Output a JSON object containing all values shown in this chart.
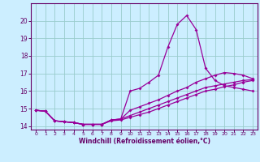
{
  "xlabel": "Windchill (Refroidissement éolien,°C)",
  "bg_color": "#cceeff",
  "line_color": "#990099",
  "grid_color": "#99cccc",
  "text_color": "#660066",
  "axis_color": "#660066",
  "xlim": [
    -0.5,
    23.5
  ],
  "ylim": [
    13.8,
    21.0
  ],
  "xticks": [
    0,
    1,
    2,
    3,
    4,
    5,
    6,
    7,
    8,
    9,
    10,
    11,
    12,
    13,
    14,
    15,
    16,
    17,
    18,
    19,
    20,
    21,
    22,
    23
  ],
  "yticks": [
    14,
    15,
    16,
    17,
    18,
    19,
    20
  ],
  "line1_x": [
    0,
    1,
    2,
    3,
    4,
    5,
    6,
    7,
    8,
    9,
    10,
    11,
    12,
    13,
    14,
    15,
    16,
    17,
    18,
    19,
    20,
    21,
    22,
    23
  ],
  "line1_y": [
    14.9,
    14.85,
    14.3,
    14.25,
    14.2,
    14.1,
    14.1,
    14.1,
    14.3,
    14.35,
    14.5,
    14.65,
    14.8,
    15.0,
    15.2,
    15.4,
    15.6,
    15.8,
    16.0,
    16.1,
    16.25,
    16.35,
    16.5,
    16.6
  ],
  "line2_x": [
    0,
    1,
    2,
    3,
    4,
    5,
    6,
    7,
    8,
    9,
    10,
    11,
    12,
    13,
    14,
    15,
    16,
    17,
    18,
    19,
    20,
    21,
    22,
    23
  ],
  "line2_y": [
    14.9,
    14.85,
    14.3,
    14.25,
    14.2,
    14.1,
    14.1,
    14.1,
    14.35,
    14.4,
    14.9,
    15.1,
    15.3,
    15.5,
    15.75,
    16.0,
    16.2,
    16.5,
    16.7,
    16.9,
    17.05,
    17.0,
    16.9,
    16.7
  ],
  "line3_x": [
    0,
    1,
    2,
    3,
    4,
    5,
    6,
    7,
    8,
    9,
    10,
    11,
    12,
    13,
    14,
    15,
    16,
    17,
    18,
    19,
    20,
    21,
    22,
    23
  ],
  "line3_y": [
    14.9,
    14.85,
    14.3,
    14.25,
    14.2,
    14.1,
    14.1,
    14.1,
    14.35,
    14.4,
    16.0,
    16.15,
    16.5,
    16.9,
    18.5,
    19.8,
    20.3,
    19.5,
    17.3,
    16.6,
    16.3,
    16.2,
    16.1,
    16.0
  ],
  "line4_x": [
    0,
    1,
    2,
    3,
    4,
    5,
    6,
    7,
    8,
    9,
    10,
    11,
    12,
    13,
    14,
    15,
    16,
    17,
    18,
    19,
    20,
    21,
    22,
    23
  ],
  "line4_y": [
    14.9,
    14.85,
    14.3,
    14.25,
    14.2,
    14.1,
    14.1,
    14.1,
    14.35,
    14.4,
    14.6,
    14.8,
    15.0,
    15.2,
    15.4,
    15.6,
    15.8,
    16.0,
    16.2,
    16.3,
    16.4,
    16.5,
    16.6,
    16.65
  ],
  "marker_size": 2.0,
  "line_width": 0.9,
  "xlabel_fontsize": 5.5,
  "xtick_fontsize": 4.5,
  "ytick_fontsize": 5.5
}
